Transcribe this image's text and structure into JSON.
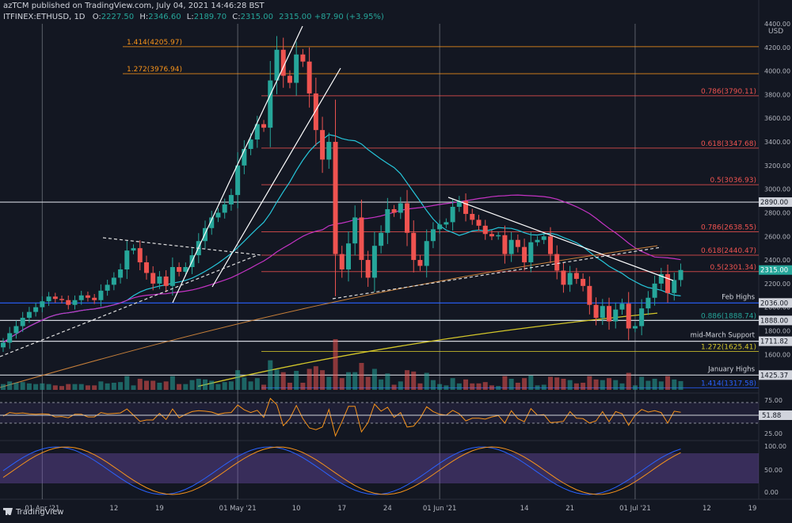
{
  "header": {
    "publisher": "azTCM published on TradingView.com, July 04, 2021 14:46:28 BST",
    "symbol": "ITFINEX:ETHUSD, 1D",
    "change": "2315.00 +87.90 (+3.95%)",
    "ohlc": [
      {
        "label": "O:",
        "value": "2227.50"
      },
      {
        "label": "H:",
        "value": "2346.60"
      },
      {
        "label": "L:",
        "value": "2189.70"
      },
      {
        "label": "C:",
        "value": "2315.00"
      }
    ]
  },
  "brand": {
    "logo_text": "TradingView"
  },
  "colors": {
    "background": "#131722",
    "up": "#26a69a",
    "down": "#ef5350",
    "fib": "#ef5350",
    "fib_orange": "#f7931a",
    "ma20": "#26c6da",
    "ma50": "#c433c4",
    "ma100": "#c8803a",
    "ma200": "#d4c72a",
    "horizontal": "#b2b5be",
    "blue_level": "#2962ff"
  },
  "chart_data": {
    "type": "candlestick",
    "price_axis": {
      "unit": "USD",
      "ylim": [
        1300,
        4400
      ],
      "ticks": [
        4400,
        4200,
        4000,
        3800,
        3600,
        3400,
        3200,
        3000,
        2800,
        2600,
        2400,
        2200,
        2000,
        1800,
        1600
      ]
    },
    "x_axis": {
      "start_date": "2021-03-26",
      "end_date": "2021-07-19",
      "ticks": [
        {
          "date": "2021-04-01",
          "label": "01 Apr '21"
        },
        {
          "date": "2021-04-12",
          "label": "12"
        },
        {
          "date": "2021-04-19",
          "label": "19"
        },
        {
          "date": "2021-05-01",
          "label": "01 May '21"
        },
        {
          "date": "2021-05-10",
          "label": "10"
        },
        {
          "date": "2021-05-17",
          "label": "17"
        },
        {
          "date": "2021-05-24",
          "label": "24"
        },
        {
          "date": "2021-06-01",
          "label": "01 Jun '21"
        },
        {
          "date": "2021-06-14",
          "label": "14"
        },
        {
          "date": "2021-06-21",
          "label": "21"
        },
        {
          "date": "2021-07-01",
          "label": "01 Jul '21"
        },
        {
          "date": "2021-07-12",
          "label": "12"
        },
        {
          "date": "2021-07-19",
          "label": "19"
        }
      ]
    },
    "ohlc_closes": [
      1700,
      1780,
      1840,
      1910,
      1960,
      2000,
      2050,
      2090,
      2070,
      2060,
      2020,
      2060,
      2100,
      2080,
      2060,
      2140,
      2190,
      2250,
      2320,
      2480,
      2500,
      2380,
      2290,
      2200,
      2260,
      2180,
      2340,
      2300,
      2340,
      2440,
      2560,
      2670,
      2760,
      2800,
      2870,
      2950,
      3200,
      3340,
      3420,
      3550,
      3520,
      3920,
      4180,
      3960,
      3900,
      4140,
      4080,
      3810,
      3500,
      3250,
      3400,
      2450,
      2320,
      2540,
      2760,
      2400,
      2250,
      2520,
      2630,
      2830,
      2800,
      2880,
      2630,
      2400,
      2350,
      2560,
      2660,
      2700,
      2720,
      2850,
      2900,
      2790,
      2740,
      2690,
      2620,
      2600,
      2610,
      2450,
      2570,
      2510,
      2380,
      2550,
      2570,
      2600,
      2450,
      2310,
      2190,
      2290,
      2240,
      2180,
      2020,
      1910,
      2010,
      1880,
      1980,
      2030,
      1820,
      1840,
      1990,
      2080,
      2200,
      2280,
      2120,
      2230,
      2315
    ],
    "fib_levels": [
      {
        "price": 4205.97,
        "label": "1.414(4205.97)",
        "color": "orange",
        "side": "left"
      },
      {
        "price": 3976.94,
        "label": "1.272(3976.94)",
        "color": "orange",
        "side": "left"
      },
      {
        "price": 3790.11,
        "label": "0.786(3790.11)",
        "color": "red",
        "side": "right"
      },
      {
        "price": 3347.68,
        "label": "0.618(3347.68)",
        "color": "red",
        "side": "right"
      },
      {
        "price": 3036.93,
        "label": "0.5(3036.93)",
        "color": "red",
        "side": "right"
      },
      {
        "price": 2638.55,
        "label": "0.786(2638.55)",
        "color": "red",
        "side": "right"
      },
      {
        "price": 2440.47,
        "label": "0.618(2440.47)",
        "color": "red",
        "side": "right"
      },
      {
        "price": 2301.34,
        "label": "0.5(2301.34)",
        "color": "red",
        "side": "right"
      },
      {
        "price": 1888.74,
        "label": "0.886(1888.74)",
        "color": "green",
        "side": "right"
      },
      {
        "price": 1625.41,
        "label": "1.272(1625.41)",
        "color": "yellow",
        "side": "right"
      },
      {
        "price": 1317.58,
        "label": "1.414(1317.58)",
        "color": "blue",
        "side": "right"
      }
    ],
    "horizontal_levels": [
      {
        "price": 2890.0,
        "tag": "2890.00"
      },
      {
        "price": 2036.0,
        "tag": "2036.00",
        "note": "Feb Highs"
      },
      {
        "price": 1888.0,
        "tag": "1888.00"
      },
      {
        "price": 1711.82,
        "tag": "1711.82",
        "note": "mid-March Support"
      },
      {
        "price": 1425.37,
        "tag": "1425.37",
        "note": "January Highs"
      }
    ],
    "last_price_tag": "2315.00",
    "rsi": {
      "value_tag": "51.88",
      "ticks": [
        "75.00",
        "25.00"
      ]
    },
    "stoch": {
      "ticks": [
        "100.00",
        "50.00",
        "0.00"
      ]
    }
  }
}
